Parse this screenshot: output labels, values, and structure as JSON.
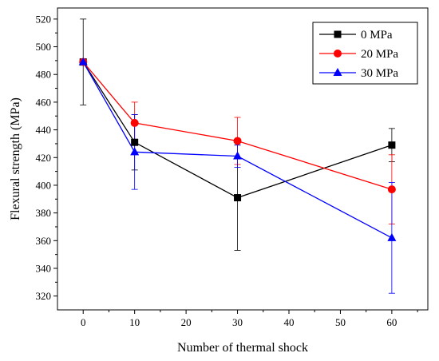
{
  "chart_data": {
    "type": "line",
    "title": "",
    "xlabel": "Number of thermal shock",
    "ylabel": "Flexural strength (MPa)",
    "xlim": [
      -5,
      67
    ],
    "ylim": [
      310,
      528
    ],
    "xticks": [
      0,
      10,
      20,
      30,
      40,
      50,
      60
    ],
    "yticks": [
      320,
      340,
      360,
      380,
      400,
      420,
      440,
      460,
      480,
      500,
      520
    ],
    "grid": false,
    "legend_position": "top-right",
    "series": [
      {
        "name": "0 MPa",
        "color": "#000000",
        "marker": "square",
        "x": [
          0,
          10,
          30,
          60
        ],
        "y": [
          489,
          431,
          391,
          429
        ],
        "err": [
          31,
          20,
          38,
          12
        ]
      },
      {
        "name": "20 MPa",
        "color": "#ff0000",
        "marker": "circle",
        "x": [
          0,
          10,
          30,
          60
        ],
        "y": [
          489,
          445,
          432,
          397
        ],
        "err": [
          0,
          15,
          17,
          25
        ]
      },
      {
        "name": "30 MPa",
        "color": "#0000ff",
        "marker": "triangle",
        "x": [
          0,
          10,
          30,
          60
        ],
        "y": [
          489,
          424,
          421,
          362
        ],
        "err": [
          0,
          27,
          8,
          40
        ]
      }
    ]
  }
}
